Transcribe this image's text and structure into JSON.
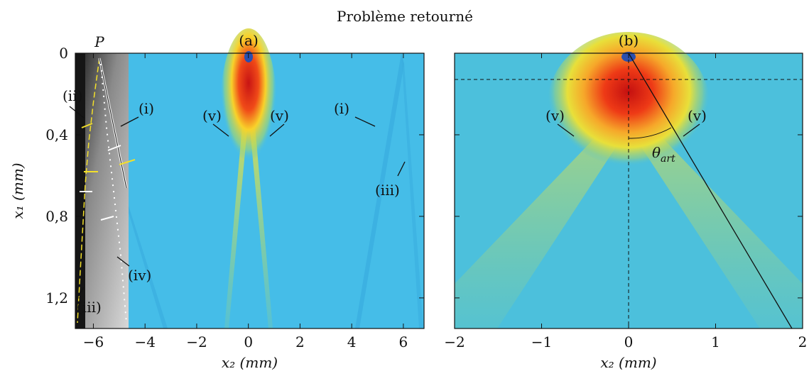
{
  "title": "Problème retourné",
  "chart_data": [
    {
      "type": "heatmap",
      "panel_label": "(a)",
      "x_label": "x₂ (mm)",
      "y_label": "x₁ (mm)",
      "xlim": [
        -6.7,
        6.8
      ],
      "ylim": [
        0,
        1.35
      ],
      "y_inverted": true,
      "xticks": [
        {
          "value": -6,
          "label": "−6"
        },
        {
          "value": -4,
          "label": "−4"
        },
        {
          "value": -2,
          "label": "−2"
        },
        0,
        2,
        4,
        6
      ],
      "yticks": [
        0,
        {
          "value": 0.4,
          "label": "0,4"
        },
        {
          "value": 0.8,
          "label": "0,8"
        },
        {
          "value": 1.2,
          "label": "1,2"
        }
      ],
      "annotations": [
        "P",
        "(ii)",
        "(i)",
        "(v)",
        "(v)",
        "(i)",
        "(iii)",
        "(iv)",
        "(iii)"
      ]
    },
    {
      "type": "heatmap",
      "panel_label": "(b)",
      "x_label": "x₂ (mm)",
      "xlim": [
        -2,
        2
      ],
      "ylim": [
        0,
        1.35
      ],
      "y_inverted": true,
      "xticks": [
        {
          "value": -2,
          "label": "−2"
        },
        {
          "value": -1,
          "label": "−1"
        },
        0,
        1,
        2
      ],
      "yticks": [
        0,
        {
          "value": 0.4,
          "label": "0,4"
        },
        {
          "value": 0.8,
          "label": "0,8"
        },
        {
          "value": 1.2,
          "label": "1,2"
        }
      ],
      "annotations": [
        "(v)",
        "(v)",
        "θ",
        "art"
      ]
    }
  ]
}
